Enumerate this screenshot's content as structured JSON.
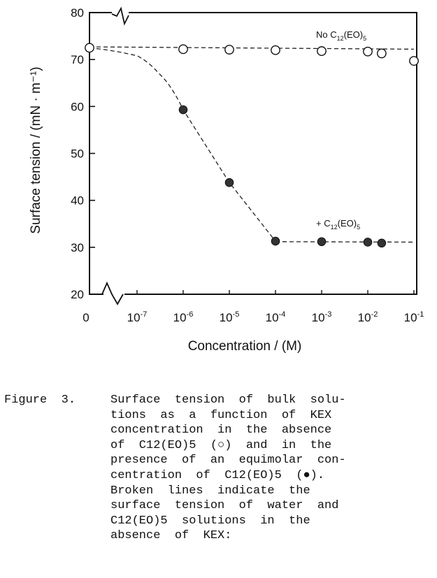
{
  "chart_data": {
    "type": "scatter",
    "ylabel": "Surface tension / (mN · m⁻¹)",
    "xlabel": "Concentration / (M)",
    "ylim": [
      20,
      80
    ],
    "yticks": [
      "20",
      "30",
      "40",
      "50",
      "60",
      "70",
      "80"
    ],
    "xticks": [
      {
        "base": "0",
        "exp": ""
      },
      {
        "base": "10",
        "exp": "-7"
      },
      {
        "base": "10",
        "exp": "-6"
      },
      {
        "base": "10",
        "exp": "-5"
      },
      {
        "base": "10",
        "exp": "-4"
      },
      {
        "base": "10",
        "exp": "-3"
      },
      {
        "base": "10",
        "exp": "-2"
      },
      {
        "base": "10",
        "exp": "-1"
      }
    ],
    "x_scale": "log (broken axis after 0)",
    "series": [
      {
        "name": "No C12(EO)5",
        "marker": "open-circle",
        "points": [
          {
            "x": 0,
            "y": 72.5
          },
          {
            "x": 1e-06,
            "y": 72.2
          },
          {
            "x": 1e-05,
            "y": 72.1
          },
          {
            "x": 0.0001,
            "y": 72.0
          },
          {
            "x": 0.001,
            "y": 71.8
          },
          {
            "x": 0.01,
            "y": 71.7
          },
          {
            "x": 0.02,
            "y": 71.3
          },
          {
            "x": 0.1,
            "y": 69.7
          }
        ]
      },
      {
        "name": "+ C12(EO)5",
        "marker": "filled-circle",
        "points": [
          {
            "x": 1e-06,
            "y": 59.3
          },
          {
            "x": 1e-05,
            "y": 43.8
          },
          {
            "x": 0.0001,
            "y": 31.3
          },
          {
            "x": 0.001,
            "y": 31.2
          },
          {
            "x": 0.01,
            "y": 31.1
          },
          {
            "x": 0.02,
            "y": 30.9
          }
        ]
      }
    ],
    "broken_lines": [
      {
        "name": "water reference",
        "points": [
          {
            "x": 0,
            "y": 72.7
          },
          {
            "x": 0.1,
            "y": 72.2
          }
        ]
      },
      {
        "name": "C12(EO)5 reference",
        "points": [
          {
            "x": 0.0001,
            "y": 31.2
          },
          {
            "x": 0.1,
            "y": 31.1
          }
        ]
      },
      {
        "name": "+ C12(EO)5 fit",
        "points": [
          {
            "x": 0,
            "y": 72.5
          },
          {
            "x": 1e-07,
            "y": 70.8
          },
          {
            "x": 3e-07,
            "y": 67.0
          },
          {
            "x": 1e-06,
            "y": 59.3
          },
          {
            "x": 1e-05,
            "y": 43.8
          },
          {
            "x": 0.0001,
            "y": 31.3
          }
        ]
      }
    ],
    "series_labels": {
      "no": {
        "base": "No C",
        "sub": "12",
        "tail": "(EO)",
        "sub2": "5"
      },
      "plus": {
        "base": "+ C",
        "sub": "12",
        "tail": "(EO)",
        "sub2": "5"
      }
    }
  },
  "caption": {
    "figure_label": "Figure  3.",
    "lines": [
      "Surface  tension  of  bulk  solu-",
      "tions  as  a  function  of  KEX",
      "concentration  in  the  absence",
      "of  C12(EO)5  (○)  and  in  the",
      "presence  of  an  equimolar  con-",
      "centration  of  C12(EO)5  (●).",
      "Broken  lines  indicate  the",
      "surface  tension  of  water  and",
      "C12(EO)5  solutions  in  the",
      "absence  of  KEX:"
    ]
  }
}
